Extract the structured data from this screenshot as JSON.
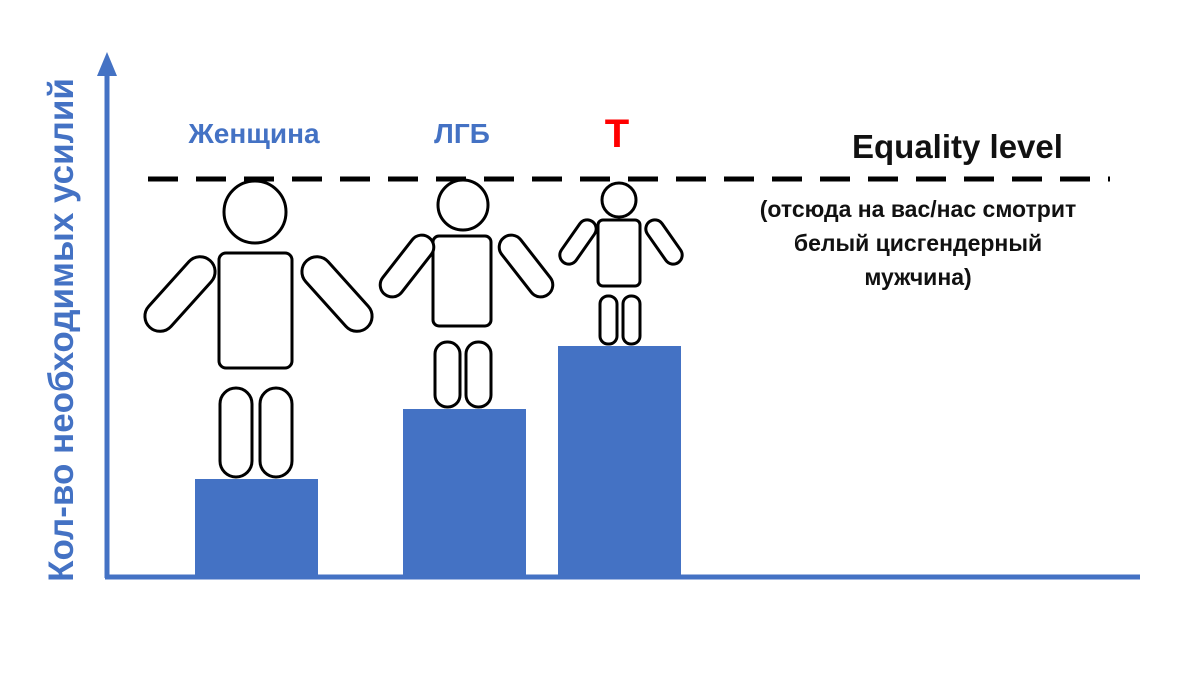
{
  "y_axis_label": "Кол-во необходимых усилий",
  "categories": [
    {
      "label": "Женщина",
      "color": "#4472C4"
    },
    {
      "label": "ЛГБ",
      "color": "#4472C4"
    },
    {
      "label": "T",
      "color": "#FF0000"
    }
  ],
  "equality": {
    "title": "Equality level",
    "note_lines": [
      "(отсюда на вас/нас смотрит",
      "белый цисгендерный",
      "мужчина)"
    ]
  },
  "colors": {
    "bar": "#4472C4",
    "axis": "#4472C4",
    "line": "#000000",
    "figure_stroke": "#000000"
  },
  "icons": [
    "person-figure-icon"
  ]
}
